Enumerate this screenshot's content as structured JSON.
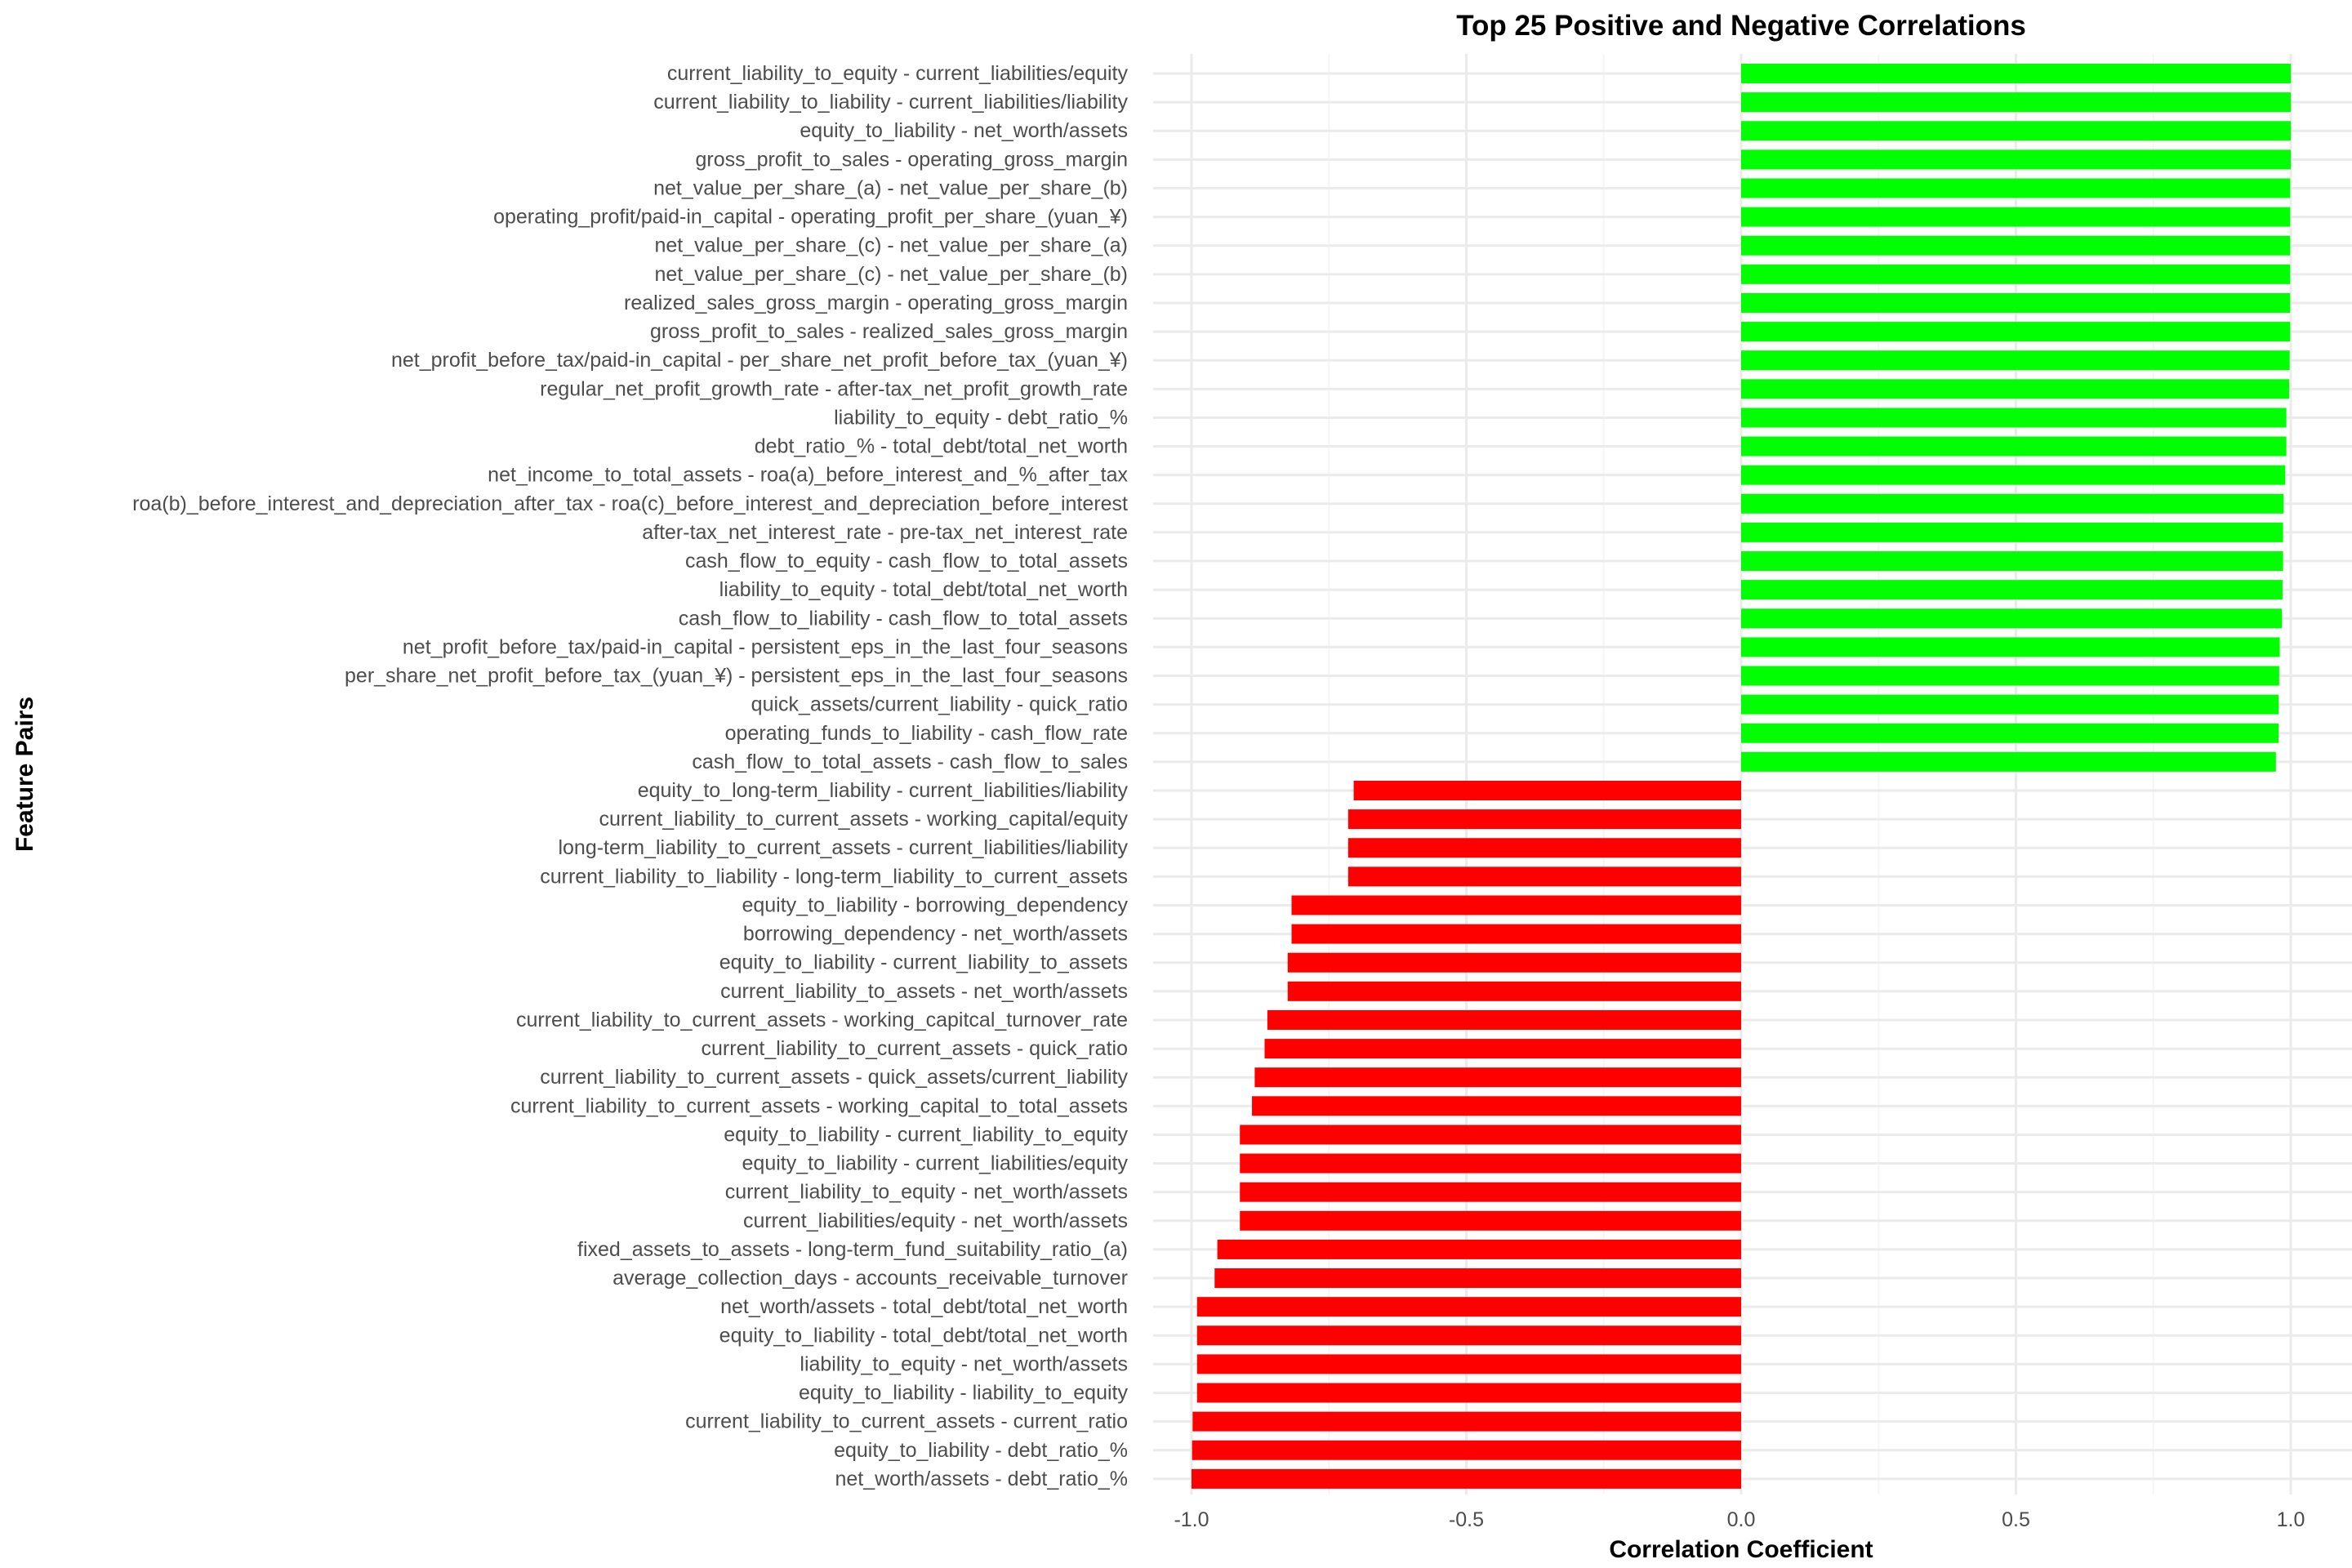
{
  "chart_data": {
    "type": "bar",
    "orientation": "horizontal",
    "title": "Top 25 Positive and Negative Correlations",
    "xlabel": "Correlation Coefficient",
    "ylabel": "Feature Pairs",
    "xlim": [
      -1.0,
      1.0
    ],
    "xticks": [
      "-1.0",
      "-0.5",
      "0.0",
      "0.5",
      "1.0"
    ],
    "grid": true,
    "legend": "none",
    "colors": {
      "positive": "#00ff00",
      "negative": "#ff0000",
      "grid_major": "#ebebeb",
      "grid_minor": "#f5f5f5"
    },
    "categories": [
      "current_liability_to_equity - current_liabilities/equity",
      "current_liability_to_liability - current_liabilities/liability",
      "equity_to_liability - net_worth/assets",
      "gross_profit_to_sales - operating_gross_margin",
      "net_value_per_share_(a) - net_value_per_share_(b)",
      "operating_profit/paid-in_capital - operating_profit_per_share_(yuan_¥)",
      "net_value_per_share_(c) - net_value_per_share_(a)",
      "net_value_per_share_(c) - net_value_per_share_(b)",
      "realized_sales_gross_margin - operating_gross_margin",
      "gross_profit_to_sales - realized_sales_gross_margin",
      "net_profit_before_tax/paid-in_capital - per_share_net_profit_before_tax_(yuan_¥)",
      "regular_net_profit_growth_rate - after-tax_net_profit_growth_rate",
      "liability_to_equity - debt_ratio_%",
      "debt_ratio_% - total_debt/total_net_worth",
      "net_income_to_total_assets - roa(a)_before_interest_and_%_after_tax",
      "roa(b)_before_interest_and_depreciation_after_tax - roa(c)_before_interest_and_depreciation_before_interest",
      "after-tax_net_interest_rate - pre-tax_net_interest_rate",
      "cash_flow_to_equity - cash_flow_to_total_assets",
      "liability_to_equity - total_debt/total_net_worth",
      "cash_flow_to_liability - cash_flow_to_total_assets",
      "net_profit_before_tax/paid-in_capital - persistent_eps_in_the_last_four_seasons",
      "per_share_net_profit_before_tax_(yuan_¥) - persistent_eps_in_the_last_four_seasons",
      "quick_assets/current_liability - quick_ratio",
      "operating_funds_to_liability - cash_flow_rate",
      "cash_flow_to_total_assets - cash_flow_to_sales",
      "equity_to_long-term_liability - current_liabilities/liability",
      "current_liability_to_current_assets - working_capital/equity",
      "long-term_liability_to_current_assets - current_liabilities/liability",
      "current_liability_to_liability - long-term_liability_to_current_assets",
      "equity_to_liability - borrowing_dependency",
      "borrowing_dependency - net_worth/assets",
      "equity_to_liability - current_liability_to_assets",
      "current_liability_to_assets - net_worth/assets",
      "current_liability_to_current_assets - working_capitcal_turnover_rate",
      "current_liability_to_current_assets - quick_ratio",
      "current_liability_to_current_assets - quick_assets/current_liability",
      "current_liability_to_current_assets - working_capital_to_total_assets",
      "equity_to_liability - current_liability_to_equity",
      "equity_to_liability - current_liabilities/equity",
      "current_liability_to_equity - net_worth/assets",
      "current_liabilities/equity - net_worth/assets",
      "fixed_assets_to_assets - long-term_fund_suitability_ratio_(a)",
      "average_collection_days - accounts_receivable_turnover",
      "net_worth/assets - total_debt/total_net_worth",
      "equity_to_liability - total_debt/total_net_worth",
      "liability_to_equity - net_worth/assets",
      "equity_to_liability - liability_to_equity",
      "current_liability_to_current_assets - current_ratio",
      "equity_to_liability - debt_ratio_%",
      "net_worth/assets - debt_ratio_%"
    ],
    "values": [
      1.0,
      1.0,
      1.0,
      1.0,
      0.999,
      0.999,
      0.999,
      0.999,
      0.999,
      0.999,
      0.998,
      0.997,
      0.992,
      0.992,
      0.99,
      0.987,
      0.986,
      0.986,
      0.985,
      0.984,
      0.98,
      0.979,
      0.978,
      0.978,
      0.973,
      -0.705,
      -0.715,
      -0.715,
      -0.715,
      -0.818,
      -0.818,
      -0.825,
      -0.825,
      -0.862,
      -0.867,
      -0.885,
      -0.89,
      -0.912,
      -0.912,
      -0.912,
      -0.912,
      -0.953,
      -0.958,
      -0.99,
      -0.99,
      -0.99,
      -0.99,
      -0.998,
      -0.999,
      -1.0
    ]
  }
}
